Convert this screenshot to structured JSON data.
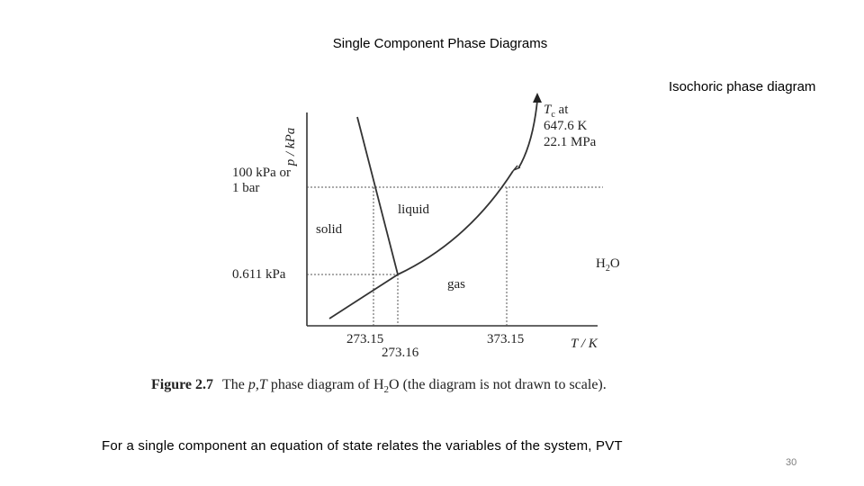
{
  "slide": {
    "title": "Single Component Phase Diagrams",
    "subtitle": "Isochoric phase diagram",
    "footer_text": "For a single component an equation of state relates the variables of the system, PVT",
    "page_number": "30"
  },
  "diagram": {
    "y_axis_label": "p / kPa",
    "x_axis_label": "T / K",
    "y_tick_top": "100 kPa or",
    "y_tick_top_line2": "1 bar",
    "y_tick_bottom": "0.611 kPa",
    "x_tick_1": "273.15",
    "x_tick_2": "273.16",
    "x_tick_3": "373.15",
    "region_solid": "solid",
    "region_liquid": "liquid",
    "region_gas": "gas",
    "substance": "H",
    "substance_sub": "2",
    "substance_end": "O",
    "critical_line1": "T",
    "critical_line1_sub": "c",
    "critical_line1_end": " at",
    "critical_line2": "647.6 K",
    "critical_line3": "22.1 MPa"
  },
  "caption": {
    "label": "Figure 2.7",
    "text_1": "The ",
    "text_vars": "p,T",
    "text_2": " phase diagram of H",
    "text_sub": "2",
    "text_3": "O (the diagram is not drawn to scale)."
  }
}
